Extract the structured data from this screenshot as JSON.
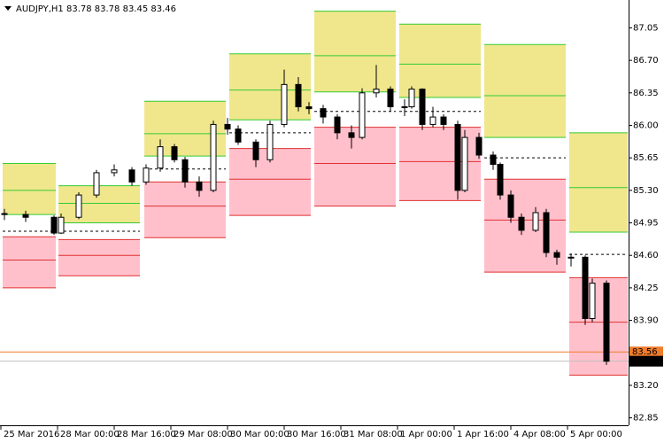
{
  "chart_data": {
    "type": "candlestick",
    "title": "AUDJPY,H1  83.78 83.78 83.45 83.46",
    "ylim": [
      82.77,
      87.35
    ],
    "yticks": [
      {
        "value": 87.05,
        "label": "87.05"
      },
      {
        "value": 86.7,
        "label": "86.70"
      },
      {
        "value": 86.35,
        "label": "86.35"
      },
      {
        "value": 86.0,
        "label": "86.00"
      },
      {
        "value": 85.65,
        "label": "85.65"
      },
      {
        "value": 85.3,
        "label": "85.30"
      },
      {
        "value": 84.95,
        "label": "84.95"
      },
      {
        "value": 84.6,
        "label": "84.60"
      },
      {
        "value": 84.25,
        "label": "84.25"
      },
      {
        "value": 83.9,
        "label": "83.90"
      },
      {
        "value": 83.55,
        "label": "83.55"
      },
      {
        "value": 83.2,
        "label": "83.20"
      },
      {
        "value": 82.85,
        "label": "82.85"
      }
    ],
    "xlim": [
      -0.25,
      177.25
    ],
    "xticks": [
      {
        "value": 0,
        "label": "25 Mar 2016"
      },
      {
        "value": 16,
        "label": "28 Mar 00:00"
      },
      {
        "value": 32,
        "label": "28 Mar 16:00"
      },
      {
        "value": 48,
        "label": "29 Mar 08:00"
      },
      {
        "value": 64,
        "label": "30 Mar 00:00"
      },
      {
        "value": 80,
        "label": "30 Mar 16:00"
      },
      {
        "value": 96,
        "label": "31 Mar 08:00"
      },
      {
        "value": 112,
        "label": "1 Apr 00:00"
      },
      {
        "value": 128,
        "label": "1 Apr 16:00"
      },
      {
        "value": 144,
        "label": "4 Apr 08:00"
      },
      {
        "value": 160,
        "label": "5 Apr 00:00"
      }
    ],
    "x": [
      1,
      7,
      15,
      17,
      22,
      27,
      32,
      37,
      41,
      45,
      49,
      52,
      56,
      60,
      64,
      67,
      72,
      76,
      80,
      84,
      87,
      91,
      95,
      99,
      102,
      106,
      110,
      114,
      116,
      119,
      122,
      125,
      129,
      131,
      135,
      139,
      141,
      144,
      147,
      151,
      154,
      157,
      161,
      165,
      167,
      171
    ],
    "open": [
      85.05,
      85.04,
      85.01,
      84.84,
      85.01,
      85.25,
      85.49,
      85.52,
      85.39,
      85.54,
      85.77,
      85.63,
      85.39,
      85.3,
      86.01,
      85.96,
      85.82,
      85.63,
      86.01,
      86.44,
      86.2,
      86.18,
      86.09,
      85.92,
      85.87,
      86.35,
      86.39,
      86.2,
      86.2,
      86.39,
      86.01,
      86.09,
      86.01,
      85.3,
      85.87,
      85.68,
      85.58,
      85.25,
      85.01,
      84.87,
      85.06,
      84.63,
      84.58,
      84.58,
      83.92,
      84.3
    ],
    "high": [
      85.1,
      85.08,
      85.03,
      85.05,
      85.28,
      85.52,
      85.58,
      85.55,
      85.58,
      85.85,
      85.8,
      85.66,
      85.45,
      86.05,
      86.08,
      86.0,
      85.85,
      86.05,
      86.6,
      86.52,
      86.25,
      86.22,
      86.12,
      86.0,
      86.4,
      86.65,
      86.42,
      86.28,
      86.42,
      86.4,
      86.2,
      86.12,
      86.05,
      85.95,
      85.92,
      85.72,
      85.6,
      85.3,
      85.05,
      85.12,
      85.1,
      84.66,
      84.62,
      84.6,
      84.35,
      84.33
    ],
    "low": [
      84.98,
      84.96,
      84.82,
      84.83,
      84.99,
      85.22,
      85.45,
      85.35,
      85.36,
      85.5,
      85.6,
      85.33,
      85.23,
      85.28,
      85.9,
      85.79,
      85.55,
      85.6,
      85.98,
      86.15,
      86.12,
      86.02,
      85.85,
      85.75,
      85.85,
      86.3,
      86.15,
      86.1,
      86.18,
      85.95,
      85.98,
      85.95,
      85.2,
      85.28,
      85.64,
      85.52,
      85.2,
      84.95,
      84.82,
      84.85,
      84.58,
      84.5,
      84.48,
      83.85,
      83.88,
      83.42
    ],
    "close": [
      85.04,
      85.01,
      84.84,
      85.01,
      85.25,
      85.49,
      85.52,
      85.39,
      85.54,
      85.77,
      85.63,
      85.39,
      85.3,
      86.01,
      85.96,
      85.82,
      85.63,
      86.01,
      86.44,
      86.2,
      86.18,
      86.09,
      85.92,
      85.87,
      86.35,
      86.39,
      86.2,
      86.2,
      86.39,
      86.01,
      86.09,
      86.01,
      85.3,
      85.87,
      85.68,
      85.58,
      85.25,
      85.01,
      84.87,
      85.06,
      84.63,
      84.58,
      84.58,
      83.92,
      84.3,
      83.46
    ],
    "zone_colors": {
      "upper": "#f0e68c",
      "upper_line": "#33cc33",
      "lower": "#ffc0cb",
      "lower_line": "#e03030",
      "pivot": "#000000"
    },
    "zones": [
      {
        "start": 0.5,
        "end": 15.5,
        "upper": [
          85.59,
          85.3,
          85.04
        ],
        "lower": [
          84.8,
          84.55,
          84.25
        ],
        "pivot": 84.86
      },
      {
        "start": 16.25,
        "end": 39.25,
        "upper": [
          85.35,
          85.16,
          84.95
        ],
        "lower": [
          84.77,
          84.6,
          84.38
        ],
        "pivot": 84.86
      },
      {
        "start": 40.5,
        "end": 63.5,
        "upper": [
          86.26,
          85.91,
          85.67
        ],
        "lower": [
          85.39,
          85.13,
          84.79
        ],
        "pivot": 85.53
      },
      {
        "start": 64.5,
        "end": 87.5,
        "upper": [
          86.77,
          86.38,
          86.06
        ],
        "lower": [
          85.75,
          85.42,
          85.03
        ],
        "pivot": 85.92
      },
      {
        "start": 88.5,
        "end": 111.5,
        "upper": [
          87.23,
          86.75,
          86.36
        ],
        "lower": [
          85.98,
          85.59,
          85.13
        ],
        "pivot": 86.15
      },
      {
        "start": 112.5,
        "end": 135.5,
        "upper": [
          87.09,
          86.66,
          86.3
        ],
        "lower": [
          85.98,
          85.61,
          85.19
        ],
        "pivot": 86.15
      },
      {
        "start": 136.5,
        "end": 159.5,
        "upper": [
          86.87,
          86.32,
          85.87
        ],
        "lower": [
          85.42,
          84.98,
          84.42
        ],
        "pivot": 85.65
      },
      {
        "start": 160.5,
        "end": 177.0,
        "upper": [
          85.92,
          85.33,
          84.85
        ],
        "lower": [
          84.36,
          83.88,
          83.31
        ],
        "pivot": 84.61
      }
    ],
    "price_lines": [
      {
        "value": 83.56,
        "color": "#f07c2c",
        "label_color": "#f07c2c"
      },
      {
        "value": 83.46,
        "color": "#c0c0c0",
        "label_color": "#000000"
      }
    ]
  }
}
